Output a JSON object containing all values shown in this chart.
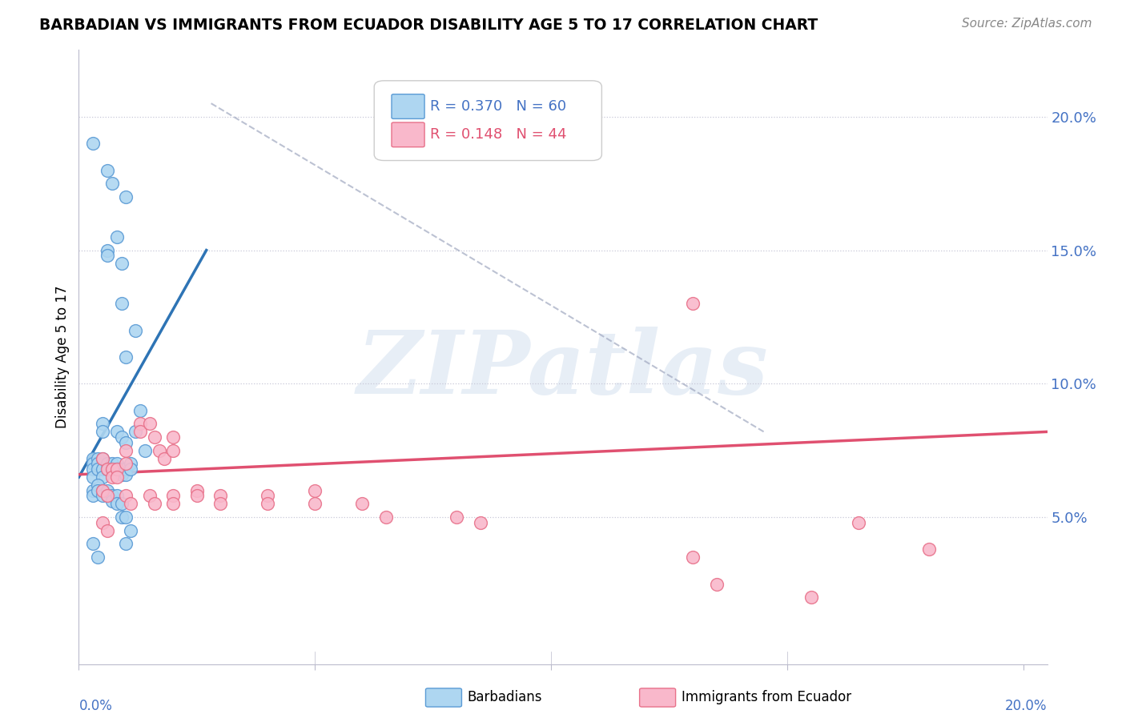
{
  "title": "BARBADIAN VS IMMIGRANTS FROM ECUADOR DISABILITY AGE 5 TO 17 CORRELATION CHART",
  "source": "Source: ZipAtlas.com",
  "ylabel": "Disability Age 5 to 17",
  "xlim": [
    0.0,
    0.205
  ],
  "ylim": [
    -0.005,
    0.225
  ],
  "yticks": [
    0.05,
    0.1,
    0.15,
    0.2
  ],
  "ytick_labels": [
    "5.0%",
    "10.0%",
    "15.0%",
    "20.0%"
  ],
  "blue_R": 0.37,
  "blue_N": 60,
  "pink_R": 0.148,
  "pink_N": 44,
  "blue_color": "#AED6F1",
  "pink_color": "#F9B8CB",
  "blue_edge_color": "#5B9BD5",
  "pink_edge_color": "#E8718A",
  "blue_line_color": "#2E74B5",
  "pink_line_color": "#E05070",
  "blue_scatter": [
    [
      0.003,
      0.19
    ],
    [
      0.006,
      0.18
    ],
    [
      0.007,
      0.175
    ],
    [
      0.01,
      0.17
    ],
    [
      0.008,
      0.155
    ],
    [
      0.009,
      0.13
    ],
    [
      0.009,
      0.145
    ],
    [
      0.012,
      0.12
    ],
    [
      0.006,
      0.15
    ],
    [
      0.006,
      0.148
    ],
    [
      0.01,
      0.11
    ],
    [
      0.005,
      0.085
    ],
    [
      0.005,
      0.082
    ],
    [
      0.008,
      0.082
    ],
    [
      0.009,
      0.08
    ],
    [
      0.01,
      0.078
    ],
    [
      0.012,
      0.082
    ],
    [
      0.013,
      0.09
    ],
    [
      0.014,
      0.075
    ],
    [
      0.003,
      0.072
    ],
    [
      0.003,
      0.07
    ],
    [
      0.003,
      0.068
    ],
    [
      0.003,
      0.065
    ],
    [
      0.004,
      0.072
    ],
    [
      0.004,
      0.07
    ],
    [
      0.004,
      0.068
    ],
    [
      0.005,
      0.072
    ],
    [
      0.005,
      0.068
    ],
    [
      0.005,
      0.065
    ],
    [
      0.006,
      0.07
    ],
    [
      0.006,
      0.068
    ],
    [
      0.007,
      0.07
    ],
    [
      0.007,
      0.068
    ],
    [
      0.008,
      0.07
    ],
    [
      0.008,
      0.068
    ],
    [
      0.009,
      0.068
    ],
    [
      0.009,
      0.066
    ],
    [
      0.01,
      0.068
    ],
    [
      0.01,
      0.066
    ],
    [
      0.011,
      0.07
    ],
    [
      0.011,
      0.068
    ],
    [
      0.003,
      0.06
    ],
    [
      0.003,
      0.058
    ],
    [
      0.004,
      0.062
    ],
    [
      0.004,
      0.06
    ],
    [
      0.005,
      0.06
    ],
    [
      0.005,
      0.058
    ],
    [
      0.006,
      0.06
    ],
    [
      0.006,
      0.058
    ],
    [
      0.007,
      0.058
    ],
    [
      0.007,
      0.056
    ],
    [
      0.008,
      0.058
    ],
    [
      0.008,
      0.055
    ],
    [
      0.009,
      0.055
    ],
    [
      0.009,
      0.05
    ],
    [
      0.01,
      0.05
    ],
    [
      0.01,
      0.04
    ],
    [
      0.011,
      0.045
    ],
    [
      0.003,
      0.04
    ],
    [
      0.004,
      0.035
    ]
  ],
  "pink_scatter": [
    [
      0.005,
      0.072
    ],
    [
      0.006,
      0.068
    ],
    [
      0.007,
      0.068
    ],
    [
      0.007,
      0.065
    ],
    [
      0.008,
      0.068
    ],
    [
      0.008,
      0.065
    ],
    [
      0.01,
      0.075
    ],
    [
      0.01,
      0.07
    ],
    [
      0.013,
      0.085
    ],
    [
      0.013,
      0.082
    ],
    [
      0.015,
      0.085
    ],
    [
      0.016,
      0.08
    ],
    [
      0.017,
      0.075
    ],
    [
      0.018,
      0.072
    ],
    [
      0.02,
      0.08
    ],
    [
      0.02,
      0.075
    ],
    [
      0.005,
      0.06
    ],
    [
      0.006,
      0.058
    ],
    [
      0.01,
      0.058
    ],
    [
      0.011,
      0.055
    ],
    [
      0.015,
      0.058
    ],
    [
      0.016,
      0.055
    ],
    [
      0.02,
      0.058
    ],
    [
      0.02,
      0.055
    ],
    [
      0.025,
      0.06
    ],
    [
      0.025,
      0.058
    ],
    [
      0.03,
      0.058
    ],
    [
      0.03,
      0.055
    ],
    [
      0.04,
      0.058
    ],
    [
      0.04,
      0.055
    ],
    [
      0.05,
      0.06
    ],
    [
      0.05,
      0.055
    ],
    [
      0.06,
      0.055
    ],
    [
      0.065,
      0.05
    ],
    [
      0.08,
      0.05
    ],
    [
      0.085,
      0.048
    ],
    [
      0.005,
      0.048
    ],
    [
      0.006,
      0.045
    ],
    [
      0.13,
      0.035
    ],
    [
      0.135,
      0.025
    ],
    [
      0.155,
      0.02
    ],
    [
      0.13,
      0.13
    ],
    [
      0.165,
      0.048
    ],
    [
      0.18,
      0.038
    ]
  ],
  "blue_line_pts": [
    [
      0.0,
      0.065
    ],
    [
      0.027,
      0.15
    ]
  ],
  "pink_line_pts": [
    [
      0.0,
      0.066
    ],
    [
      0.205,
      0.082
    ]
  ],
  "diag_line_pts": [
    [
      0.028,
      0.205
    ],
    [
      0.145,
      0.082
    ]
  ],
  "watermark": "ZIPatlas",
  "legend_blue_label": "Barbadians",
  "legend_pink_label": "Immigrants from Ecuador"
}
